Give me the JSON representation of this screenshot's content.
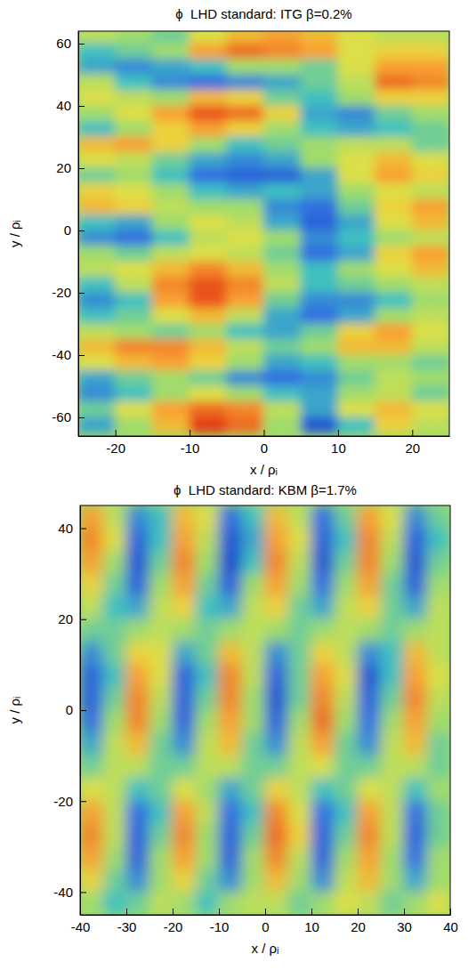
{
  "chart_data": [
    {
      "type": "heatmap",
      "title": "ϕ  LHD standard: ITG β=0.2%",
      "xlabel": "x / ρᵢ",
      "ylabel": "y / ρᵢ",
      "xlim": [
        -25,
        25
      ],
      "ylim": [
        -66,
        64
      ],
      "xticks": [
        -20,
        -10,
        0,
        10,
        20
      ],
      "yticks": [
        -60,
        -40,
        -20,
        0,
        20,
        40,
        60
      ],
      "zlim": [
        -1,
        1
      ],
      "x": [
        -22.5,
        -17.5,
        -12.5,
        -7.5,
        -2.5,
        2.5,
        7.5,
        12.5,
        17.5,
        22.5
      ],
      "y": [
        62.5,
        57.5,
        52.5,
        47.5,
        42.5,
        37.5,
        32.5,
        27.5,
        22.5,
        17.5,
        12.5,
        7.5,
        2.5,
        -2.5,
        -7.5,
        -12.5,
        -17.5,
        -22.5,
        -27.5,
        -32.5,
        -37.5,
        -42.5,
        -47.5,
        -52.5,
        -57.5,
        -62.5
      ],
      "z": [
        [
          0.1,
          0,
          -0.1,
          0.2,
          0.4,
          0.5,
          0.4,
          0.2,
          0.1,
          0.1
        ],
        [
          -0.2,
          -0.1,
          0,
          0.5,
          0.7,
          0.6,
          0.5,
          0.2,
          0.3,
          0.3
        ],
        [
          -0.3,
          -0.4,
          -0.3,
          -0.2,
          0,
          0,
          -0.1,
          0.2,
          0.5,
          0.5
        ],
        [
          0.1,
          -0.2,
          -0.4,
          -0.5,
          -0.4,
          -0.3,
          -0.1,
          0.1,
          0.7,
          0.6
        ],
        [
          0.2,
          0.1,
          0,
          0.4,
          0.3,
          -0.1,
          -0.2,
          0,
          0.3,
          0.3
        ],
        [
          0,
          0.2,
          0.5,
          0.8,
          0.7,
          0.3,
          -0.3,
          -0.4,
          -0.1,
          0
        ],
        [
          -0.2,
          0,
          0.3,
          0.5,
          0.3,
          0,
          -0.2,
          -0.3,
          -0.2,
          -0.1
        ],
        [
          0.4,
          0.5,
          0.3,
          0,
          -0.2,
          -0.1,
          0,
          0.1,
          0.1,
          -0.1
        ],
        [
          0.2,
          0.1,
          -0.1,
          -0.3,
          -0.4,
          -0.3,
          0,
          0.2,
          0.4,
          0.2
        ],
        [
          -0.1,
          0,
          -0.2,
          -0.5,
          -0.6,
          -0.6,
          -0.3,
          0.2,
          0.5,
          0.3
        ],
        [
          0.3,
          0.2,
          0,
          -0.2,
          -0.3,
          -0.2,
          -0.3,
          0,
          0.2,
          0.1
        ],
        [
          0.4,
          0.3,
          0.1,
          0,
          0,
          -0.4,
          -0.5,
          -0.1,
          0.3,
          0.5
        ],
        [
          -0.2,
          -0.3,
          0,
          0.2,
          0.1,
          -0.3,
          -0.6,
          -0.3,
          0.2,
          0.4
        ],
        [
          -0.4,
          -0.5,
          -0.2,
          0.1,
          0.2,
          0,
          -0.4,
          -0.2,
          0,
          0.1
        ],
        [
          0,
          -0.1,
          0.1,
          0.2,
          0.1,
          -0.1,
          -0.5,
          -0.3,
          0.3,
          0.5
        ],
        [
          0.1,
          0.2,
          0.4,
          0.6,
          0.4,
          0,
          -0.2,
          0,
          0.2,
          0.4
        ],
        [
          -0.2,
          0.1,
          0.6,
          0.8,
          0.6,
          0.1,
          -0.2,
          -0.1,
          0,
          0.1
        ],
        [
          -0.4,
          -0.2,
          0.5,
          0.8,
          0.5,
          -0.1,
          -0.4,
          -0.4,
          -0.2,
          0
        ],
        [
          -0.2,
          -0.1,
          0.2,
          0.4,
          0.1,
          -0.3,
          -0.5,
          -0.3,
          0,
          0.1
        ],
        [
          0.1,
          0,
          -0.1,
          0,
          -0.2,
          -0.3,
          -0.1,
          0.3,
          0.5,
          0.2
        ],
        [
          0.4,
          0.6,
          0.6,
          0.4,
          0.1,
          -0.1,
          0,
          0.4,
          0.4,
          0.1
        ],
        [
          0.2,
          0.4,
          0.5,
          0.3,
          0,
          -0.3,
          -0.2,
          0,
          0,
          -0.1
        ],
        [
          -0.3,
          -0.1,
          0,
          -0.1,
          -0.4,
          -0.5,
          -0.4,
          -0.1,
          0.1,
          0
        ],
        [
          -0.4,
          -0.2,
          0,
          0.2,
          0,
          -0.2,
          -0.3,
          0,
          0.1,
          -0.1
        ],
        [
          -0.1,
          0.2,
          0.5,
          0.7,
          0.6,
          0.1,
          -0.3,
          0.2,
          0.4,
          0.2
        ],
        [
          -0.3,
          0,
          0.4,
          0.9,
          0.7,
          0,
          -0.7,
          -0.2,
          0.3,
          0.1
        ]
      ]
    },
    {
      "type": "heatmap",
      "title": "ϕ  LHD standard: KBM β=1.7%",
      "xlabel": "x / ρᵢ",
      "ylabel": "y / ρᵢ",
      "xlim": [
        -40,
        40
      ],
      "ylim": [
        -45,
        45
      ],
      "xticks": [
        -40,
        -30,
        -20,
        -10,
        0,
        10,
        20,
        30,
        40
      ],
      "yticks": [
        -40,
        -20,
        0,
        20,
        40
      ],
      "zlim": [
        -1,
        1
      ],
      "x": [
        -37.5,
        -32.5,
        -27.5,
        -22.5,
        -17.5,
        -12.5,
        -7.5,
        -2.5,
        2.5,
        7.5,
        12.5,
        17.5,
        22.5,
        27.5,
        32.5,
        37.5
      ],
      "y": [
        42.5,
        37.5,
        32.5,
        27.5,
        22.5,
        17.5,
        12.5,
        7.5,
        2.5,
        -2.5,
        -7.5,
        -12.5,
        -17.5,
        -22.5,
        -27.5,
        -32.5,
        -37.5,
        -42.5
      ],
      "z": [
        [
          0.5,
          0.1,
          -0.4,
          -0.2,
          0.4,
          0.2,
          -0.5,
          -0.2,
          0.4,
          0.1,
          -0.5,
          -0.1,
          0.5,
          0.2,
          -0.4,
          -0.1
        ],
        [
          0.6,
          0.2,
          -0.6,
          -0.2,
          0.5,
          0.1,
          -0.7,
          -0.3,
          0.5,
          0.2,
          -0.6,
          -0.2,
          0.6,
          0.1,
          -0.6,
          -0.2
        ],
        [
          0.5,
          0,
          -0.7,
          -0.1,
          0.6,
          0,
          -0.8,
          -0.2,
          0.6,
          0.1,
          -0.7,
          -0.1,
          0.6,
          0,
          -0.7,
          -0.1
        ],
        [
          0.3,
          -0.1,
          -0.6,
          0,
          0.5,
          -0.1,
          -0.6,
          0,
          0.5,
          0,
          -0.5,
          0,
          0.5,
          -0.1,
          -0.6,
          0
        ],
        [
          0.1,
          -0.2,
          -0.3,
          0.1,
          0.3,
          -0.2,
          -0.3,
          0.1,
          0.3,
          -0.1,
          -0.3,
          0.1,
          0.3,
          -0.1,
          -0.3,
          0.1
        ],
        [
          -0.1,
          -0.1,
          0,
          0.1,
          0,
          -0.1,
          0,
          0.1,
          0,
          -0.1,
          0,
          0.1,
          0,
          -0.1,
          0,
          0.1
        ],
        [
          -0.4,
          -0.1,
          0.3,
          0.2,
          -0.3,
          -0.1,
          0.4,
          0.1,
          -0.4,
          -0.1,
          0.3,
          0.1,
          -0.4,
          -0.2,
          0.4,
          0.1
        ],
        [
          -0.6,
          -0.2,
          0.5,
          0.2,
          -0.6,
          -0.2,
          0.6,
          0.1,
          -0.6,
          -0.1,
          0.5,
          0.2,
          -0.7,
          -0.2,
          0.5,
          0.2
        ],
        [
          -0.6,
          -0.1,
          0.6,
          0.1,
          -0.6,
          -0.1,
          0.6,
          0,
          -0.7,
          -0.1,
          0.6,
          0.1,
          -0.6,
          -0.1,
          0.6,
          0.1
        ],
        [
          -0.5,
          0,
          0.6,
          0,
          -0.6,
          0,
          0.5,
          0,
          -0.6,
          0,
          0.7,
          0,
          -0.5,
          0,
          0.5,
          0
        ],
        [
          -0.3,
          0.1,
          0.4,
          -0.1,
          -0.4,
          0.1,
          0.4,
          -0.1,
          -0.4,
          0.1,
          0.5,
          -0.1,
          -0.4,
          0.1,
          0.4,
          -0.1
        ],
        [
          -0.1,
          0.1,
          0.1,
          -0.1,
          -0.1,
          0.1,
          0.1,
          -0.1,
          -0.1,
          0.1,
          0.2,
          -0.1,
          -0.1,
          0.1,
          0.1,
          -0.1
        ],
        [
          0.2,
          0.1,
          -0.2,
          -0.1,
          0.2,
          0,
          -0.3,
          -0.1,
          0.3,
          0.1,
          -0.2,
          -0.1,
          0.2,
          0.1,
          -0.2,
          0
        ],
        [
          0.5,
          0.1,
          -0.5,
          -0.2,
          0.5,
          0.1,
          -0.5,
          -0.2,
          0.6,
          0.2,
          -0.5,
          -0.2,
          0.5,
          0.1,
          -0.5,
          -0.1
        ],
        [
          0.6,
          0.1,
          -0.6,
          -0.1,
          0.6,
          0,
          -0.6,
          -0.1,
          0.7,
          0.3,
          -0.6,
          -0.1,
          0.6,
          0.1,
          -0.6,
          -0.1
        ],
        [
          0.5,
          0,
          -0.6,
          0,
          0.5,
          0,
          -0.6,
          0,
          0.6,
          0.1,
          -0.6,
          0,
          0.5,
          0,
          -0.5,
          0
        ],
        [
          0.3,
          -0.1,
          -0.4,
          0,
          0.3,
          -0.1,
          -0.4,
          0,
          0.4,
          0,
          -0.4,
          0.1,
          0.4,
          0,
          -0.3,
          0
        ],
        [
          0,
          -0.2,
          -0.1,
          0.1,
          0,
          -0.2,
          0,
          0.1,
          0.1,
          -0.1,
          0,
          0.2,
          0.1,
          -0.1,
          0,
          0.2
        ]
      ]
    }
  ]
}
